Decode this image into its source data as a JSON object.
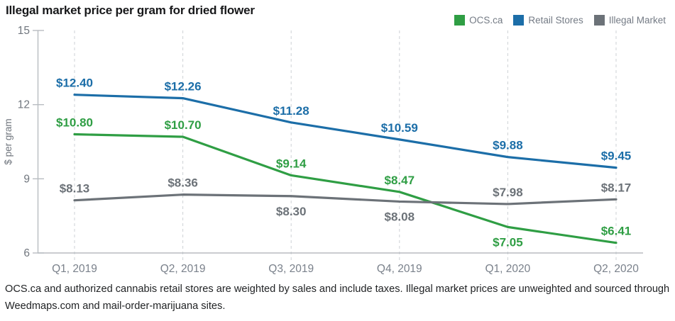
{
  "title": "Illegal market price per gram for dried flower",
  "legend": [
    {
      "label": "OCS.ca",
      "color": "#2f9e44"
    },
    {
      "label": "Retail Stores",
      "color": "#1c6ea8"
    },
    {
      "label": "Illegal Market",
      "color": "#6c7278"
    }
  ],
  "footnote": "OCS.ca and authorized cannabis retail stores are weighted by sales and include taxes. Illegal market prices are unweighted and sourced through Weedmaps.com and mail-order-marijuana sites.",
  "chart_data": {
    "type": "line",
    "title": "Illegal market price per gram for dried flower",
    "x": [
      "Q1, 2019",
      "Q2, 2019",
      "Q3, 2019",
      "Q4, 2019",
      "Q1, 2020",
      "Q2, 2020"
    ],
    "xlabel": "",
    "ylabel": "$ per gram",
    "ylim": [
      6,
      15
    ],
    "yticks": [
      6,
      9,
      12,
      15
    ],
    "grid": "vertical-dashed",
    "legend_position": "top-right",
    "series": [
      {
        "name": "OCS.ca",
        "color": "#2f9e44",
        "values": [
          10.8,
          10.7,
          9.14,
          8.47,
          7.05,
          6.41
        ],
        "point_labels": [
          "$10.80",
          "$10.70",
          "$9.14",
          "$8.47",
          "$7.05",
          "$6.41"
        ],
        "label_positions": [
          "above",
          "above",
          "above",
          "above",
          "below",
          "above"
        ]
      },
      {
        "name": "Retail Stores",
        "color": "#1c6ea8",
        "values": [
          12.4,
          12.26,
          11.28,
          10.59,
          9.88,
          9.45
        ],
        "point_labels": [
          "$12.40",
          "$12.26",
          "$11.28",
          "$10.59",
          "$9.88",
          "$9.45"
        ],
        "label_positions": [
          "above",
          "above",
          "above",
          "above",
          "above",
          "above"
        ]
      },
      {
        "name": "Illegal Market",
        "color": "#6c7278",
        "values": [
          8.13,
          8.36,
          8.3,
          8.08,
          7.98,
          8.17
        ],
        "point_labels": [
          "$8.13",
          "$8.36",
          "$8.30",
          "$8.08",
          "$7.98",
          "$8.17"
        ],
        "label_positions": [
          "above",
          "above",
          "below",
          "below",
          "above",
          "above"
        ]
      }
    ]
  }
}
